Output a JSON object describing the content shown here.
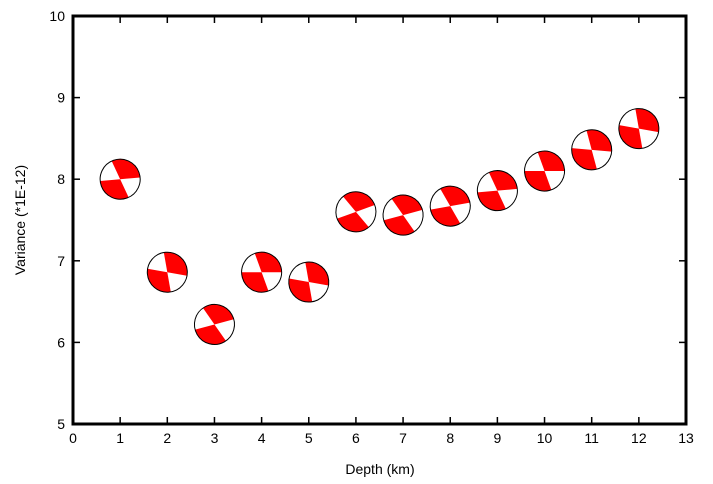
{
  "chart_data": {
    "type": "scatter",
    "marker": "focal-mechanism-beachball",
    "xlabel": "Depth (km)",
    "ylabel": "Variance (*1E-12)",
    "xlim": [
      0,
      13
    ],
    "ylim": [
      5,
      10
    ],
    "xticks": [
      0,
      1,
      2,
      3,
      4,
      5,
      6,
      7,
      8,
      9,
      10,
      11,
      12,
      13
    ],
    "yticks": [
      5,
      6,
      7,
      8,
      9,
      10
    ],
    "grid": false,
    "colors": {
      "fill": "#ff0000",
      "background": "#ffffff",
      "axis": "#000000"
    },
    "points": [
      {
        "x": 1,
        "y": 8.0,
        "rotation": 25
      },
      {
        "x": 2,
        "y": 6.86,
        "rotation": 40
      },
      {
        "x": 3,
        "y": 6.22,
        "rotation": 15
      },
      {
        "x": 4,
        "y": 6.86,
        "rotation": 30
      },
      {
        "x": 5,
        "y": 6.74,
        "rotation": 40
      },
      {
        "x": 6,
        "y": 7.6,
        "rotation": 10
      },
      {
        "x": 7,
        "y": 7.56,
        "rotation": 15
      },
      {
        "x": 8,
        "y": 7.67,
        "rotation": 20
      },
      {
        "x": 9,
        "y": 7.86,
        "rotation": 25
      },
      {
        "x": 10,
        "y": 8.1,
        "rotation": 30
      },
      {
        "x": 11,
        "y": 8.36,
        "rotation": 35
      },
      {
        "x": 12,
        "y": 8.62,
        "rotation": 40
      }
    ]
  }
}
